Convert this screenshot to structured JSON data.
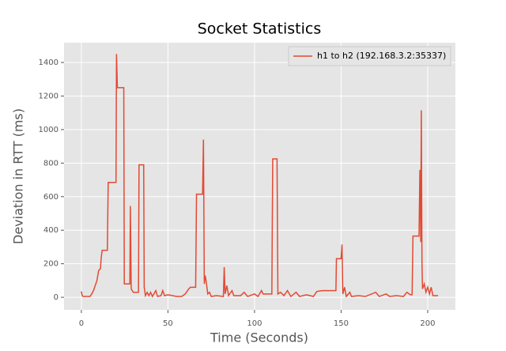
{
  "chart_data": {
    "type": "line",
    "title": "Socket Statistics",
    "xlabel": "Time (Seconds)",
    "ylabel": "Deviation in RTT (ms)",
    "x": [
      0,
      0.5,
      1,
      3,
      5,
      6,
      7,
      8,
      9,
      10,
      11,
      11.5,
      12,
      15,
      15.5,
      20,
      20.3,
      20.8,
      24.5,
      24.8,
      28,
      28.3,
      28.8,
      30,
      33,
      33.3,
      36,
      36.3,
      37,
      38,
      39,
      40,
      41,
      43,
      44,
      46,
      47,
      48,
      50,
      55,
      58,
      60,
      62,
      63,
      66,
      66.5,
      70,
      70.5,
      71,
      71.5,
      72,
      72.5,
      73,
      74,
      75,
      78,
      82,
      82.5,
      83,
      84,
      85,
      87,
      88,
      92,
      94,
      96,
      100,
      102,
      104,
      105,
      110,
      110.5,
      113,
      113.5,
      115,
      117,
      119,
      121,
      124,
      126,
      130,
      134,
      136,
      139,
      147,
      147.3,
      150,
      150.5,
      151,
      152,
      153,
      155,
      156,
      160,
      164,
      170,
      172,
      176,
      178,
      182,
      186,
      188,
      190,
      191,
      191.5,
      195,
      195.5,
      196,
      196.3,
      196.7,
      197,
      198,
      199,
      200,
      201,
      202,
      203,
      206
    ],
    "series": [
      {
        "name": "h1 to h2 (192.168.3.2:35337)",
        "color": "#E24A33",
        "values": [
          35,
          10,
          5,
          5,
          5,
          20,
          40,
          70,
          100,
          160,
          170,
          240,
          280,
          280,
          685,
          685,
          1450,
          1250,
          1250,
          80,
          80,
          545,
          50,
          30,
          30,
          790,
          790,
          60,
          10,
          30,
          10,
          30,
          5,
          40,
          5,
          10,
          40,
          10,
          15,
          5,
          5,
          20,
          50,
          60,
          60,
          615,
          615,
          940,
          80,
          130,
          100,
          60,
          20,
          30,
          5,
          10,
          5,
          180,
          20,
          70,
          10,
          40,
          10,
          10,
          30,
          5,
          20,
          5,
          40,
          20,
          20,
          825,
          825,
          20,
          30,
          10,
          40,
          5,
          30,
          5,
          15,
          5,
          35,
          40,
          40,
          230,
          230,
          315,
          20,
          60,
          5,
          30,
          5,
          10,
          5,
          30,
          5,
          20,
          5,
          10,
          5,
          30,
          15,
          15,
          365,
          365,
          760,
          330,
          1115,
          200,
          50,
          80,
          30,
          60,
          20,
          60,
          10,
          10
        ]
      }
    ],
    "xlim": [
      -10,
      216
    ],
    "ylim": [
      -75,
      1518
    ],
    "xticks": [
      0,
      50,
      100,
      150,
      200
    ],
    "yticks": [
      0,
      200,
      400,
      600,
      800,
      1000,
      1200,
      1400
    ],
    "grid": true,
    "legend": "upper right"
  }
}
